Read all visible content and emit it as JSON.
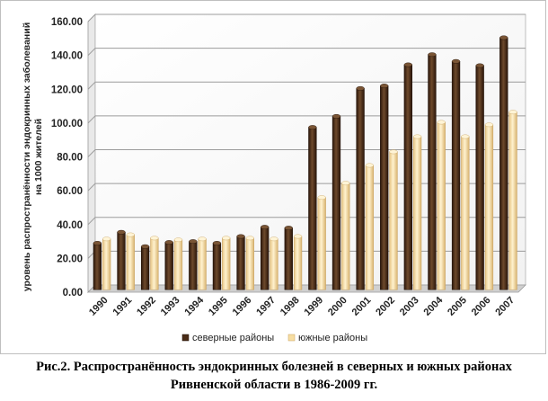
{
  "chart_data": {
    "type": "bar",
    "ylabel_lines": [
      "уровень распространённости  эндокринных заболеваний",
      "на 1000 жителей"
    ],
    "ylim": [
      0,
      160
    ],
    "yticks": [
      "0.00",
      "20.00",
      "40.00",
      "60.00",
      "80.00",
      "100.00",
      "120.00",
      "140.00",
      "160.00"
    ],
    "grid": true,
    "legend_position": "bottom",
    "categories": [
      "1990",
      "1991",
      "1992",
      "1993",
      "1994",
      "1995",
      "1996",
      "1997",
      "1998",
      "1999",
      "2000",
      "2001",
      "2002",
      "2003",
      "2004",
      "2005",
      "2006",
      "2007"
    ],
    "series": [
      {
        "name": "северные районы",
        "color": "#4a2c17",
        "values": [
          27.5,
          34,
          25.5,
          28,
          28.5,
          27.5,
          31.5,
          37,
          36.5,
          96,
          102.5,
          119,
          120.5,
          133,
          139,
          135,
          132.5,
          149
        ]
      },
      {
        "name": "южные районы",
        "color": "#f7deA2",
        "values": [
          30,
          32.5,
          30.5,
          29.5,
          30,
          30.5,
          30.5,
          30,
          31.5,
          54.5,
          63,
          73.5,
          81.5,
          90.5,
          99,
          90.5,
          97.5,
          105
        ]
      }
    ]
  },
  "caption": {
    "line1": "Рис.2. Распространённость эндокринных болезней в северных и южных районах",
    "line2": "Ривненской области в 1986-2009 гг."
  }
}
